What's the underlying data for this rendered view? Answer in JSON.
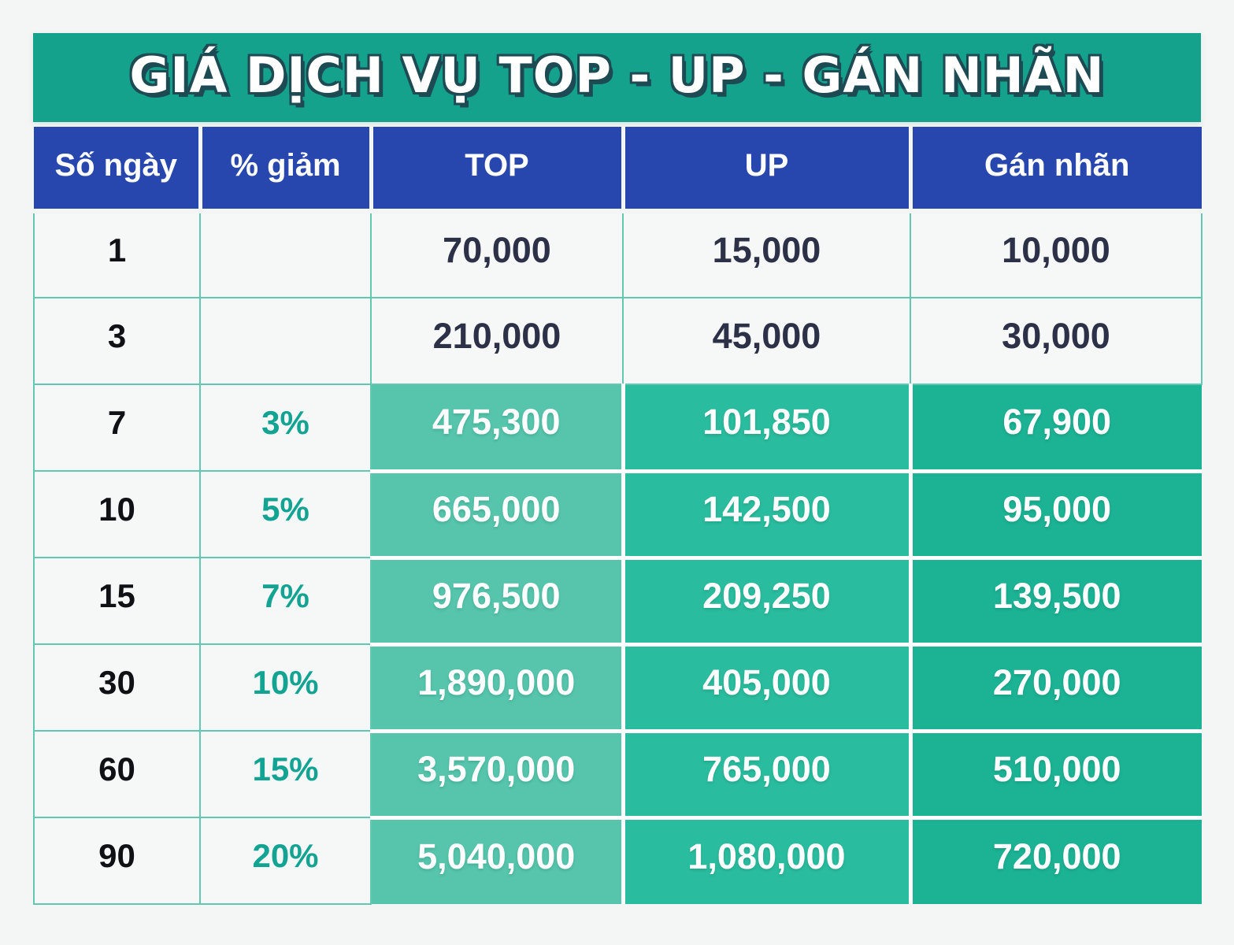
{
  "colors": {
    "page_bg": "#f4f6f5",
    "title_bg": "#15a28c",
    "title_text": "#ffffff",
    "title_outline": "#1d4a53",
    "header_bg": "#2847ae",
    "header_text": "#ffffff",
    "cell_bg": "#f6f8f7",
    "cell_border": "#63c8b1",
    "top_bg": "#56c5ac",
    "up_bg": "#2abc9e",
    "label_bg": "#1cb294",
    "highlight_text": "#ffffff",
    "number_text": "#2d3148",
    "days_text": "#0f1114",
    "discount_text": "#12a392"
  },
  "title": {
    "text": "GIÁ DỊCH VỤ TOP - UP - GÁN NHÃN"
  },
  "table": {
    "columns": [
      {
        "key": "days",
        "label": "Số ngày"
      },
      {
        "key": "discount",
        "label": "% giảm"
      },
      {
        "key": "top",
        "label": "TOP"
      },
      {
        "key": "up",
        "label": "UP"
      },
      {
        "key": "label",
        "label": "Gán nhãn"
      }
    ],
    "rows": [
      {
        "days": "1",
        "discount": "",
        "top": "70,000",
        "up": "15,000",
        "label": "10,000",
        "highlight": false
      },
      {
        "days": "3",
        "discount": "",
        "top": "210,000",
        "up": "45,000",
        "label": "30,000",
        "highlight": false
      },
      {
        "days": "7",
        "discount": "3%",
        "top": "475,300",
        "up": "101,850",
        "label": "67,900",
        "highlight": true
      },
      {
        "days": "10",
        "discount": "5%",
        "top": "665,000",
        "up": "142,500",
        "label": "95,000",
        "highlight": true
      },
      {
        "days": "15",
        "discount": "7%",
        "top": "976,500",
        "up": "209,250",
        "label": "139,500",
        "highlight": true
      },
      {
        "days": "30",
        "discount": "10%",
        "top": "1,890,000",
        "up": "405,000",
        "label": "270,000",
        "highlight": true
      },
      {
        "days": "60",
        "discount": "15%",
        "top": "3,570,000",
        "up": "765,000",
        "label": "510,000",
        "highlight": true
      },
      {
        "days": "90",
        "discount": "20%",
        "top": "5,040,000",
        "up": "1,080,000",
        "label": "720,000",
        "highlight": true
      }
    ]
  }
}
